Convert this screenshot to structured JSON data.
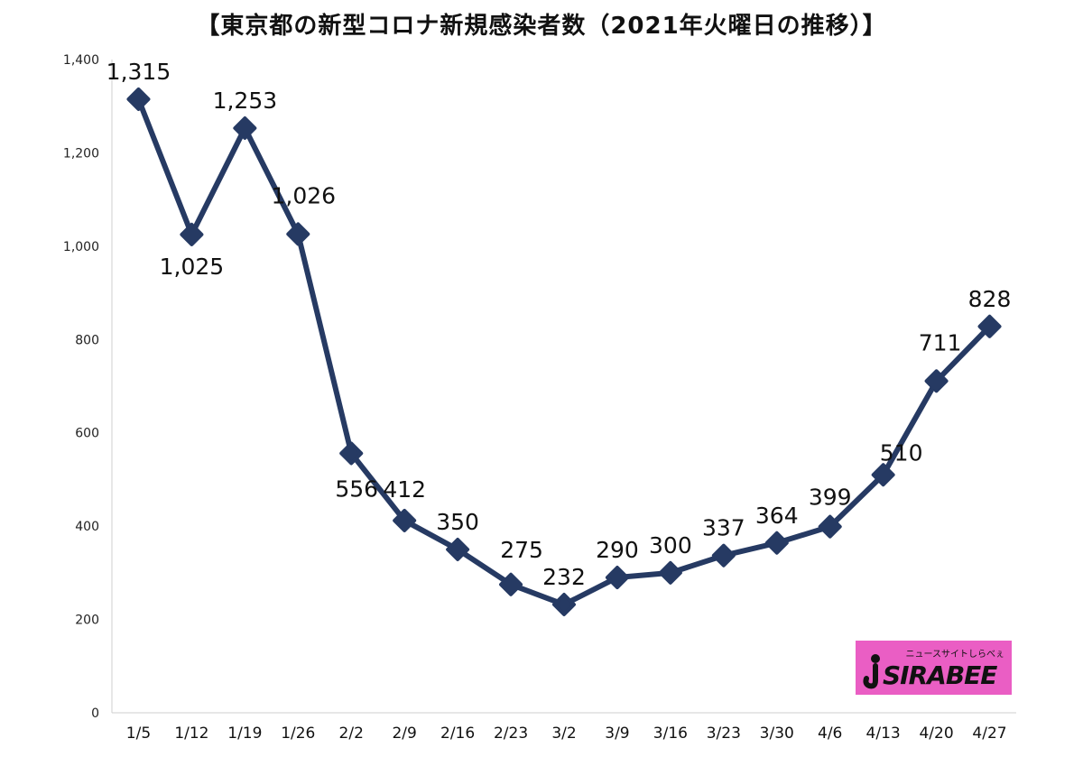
{
  "chart_data": {
    "type": "line",
    "title": "【東京都の新型コロナ新規感染者数（2021年火曜日の推移）】",
    "categories": [
      "1/5",
      "1/12",
      "1/19",
      "1/26",
      "2/2",
      "2/9",
      "2/16",
      "2/23",
      "3/2",
      "3/9",
      "3/16",
      "3/23",
      "3/30",
      "4/6",
      "4/13",
      "4/20",
      "4/27"
    ],
    "values": [
      1315,
      1025,
      1253,
      1026,
      556,
      412,
      350,
      275,
      232,
      290,
      300,
      337,
      364,
      399,
      510,
      711,
      828
    ],
    "data_labels": [
      "1,315",
      "1,025",
      "1,253",
      "1,026",
      "556",
      "412",
      "350",
      "275",
      "232",
      "290",
      "300",
      "337",
      "364",
      "399",
      "510",
      "711",
      "828"
    ],
    "y_ticks": [
      0,
      200,
      400,
      600,
      800,
      1000,
      1200,
      1400
    ],
    "y_tick_labels": [
      "0",
      "200",
      "400",
      "600",
      "800",
      "1,000",
      "1,200",
      "1,400"
    ],
    "ylim": [
      0,
      1400
    ],
    "grid": false,
    "legend": "none",
    "line_color": "#263a63"
  },
  "logo": {
    "text": "SIRABEE",
    "subtext": "ニュースサイトしらべぇ",
    "color": "#ea5ec4"
  }
}
